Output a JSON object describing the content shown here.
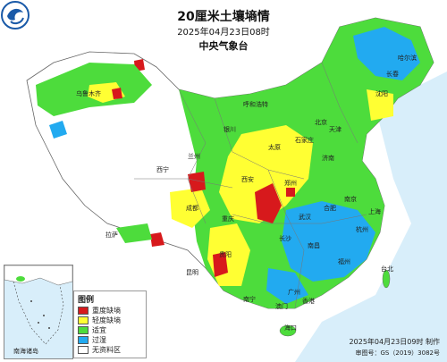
{
  "title": "20厘米土壤墒情",
  "issue_time": "2025年04月23日08时",
  "agency": "中央气象台",
  "legend": {
    "title": "图例",
    "items": [
      {
        "label": "重度缺墒",
        "color": "#d7191c"
      },
      {
        "label": "轻度缺墒",
        "color": "#ffff33"
      },
      {
        "label": "适宜",
        "color": "#4ddc3c"
      },
      {
        "label": "过湿",
        "color": "#22aaf0"
      },
      {
        "label": "无资料区",
        "color": "#ffffff"
      }
    ]
  },
  "inset_caption": "南海诸岛",
  "credit": {
    "made": "2025年04月23日09时 制作",
    "approval": "审图号：GS（2019）3082号"
  },
  "cities": [
    "哈尔滨",
    "长春",
    "沈阳",
    "北京",
    "天津",
    "石家庄",
    "太原",
    "济南",
    "郑州",
    "南京",
    "合肥",
    "上海",
    "杭州",
    "武汉",
    "长沙",
    "南昌",
    "福州",
    "台北",
    "广州",
    "南宁",
    "海口",
    "香港",
    "澳门",
    "重庆",
    "成都",
    "贵阳",
    "昆明",
    "拉萨",
    "西宁",
    "兰州",
    "银川",
    "呼和浩特",
    "乌鲁木齐",
    "西安"
  ],
  "icons": {
    "logo": "cma-logo-icon"
  }
}
